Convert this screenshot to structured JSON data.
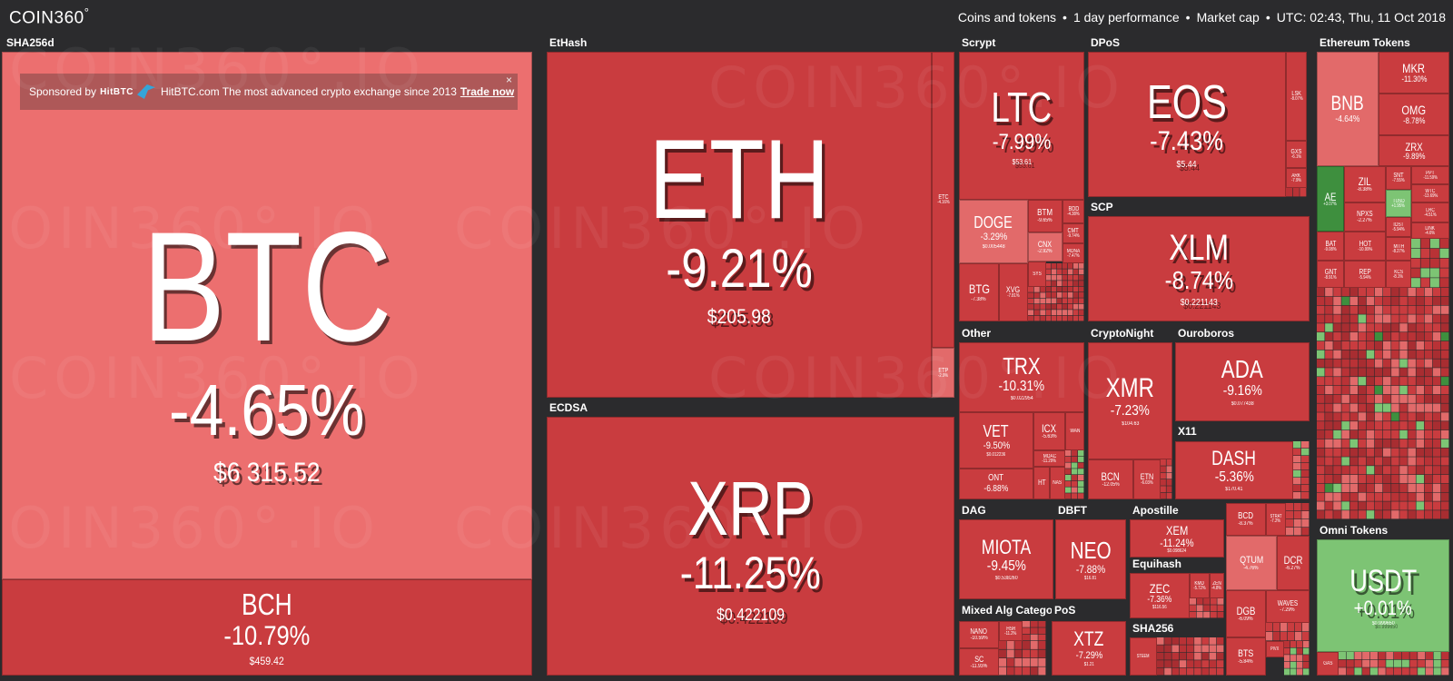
{
  "header": {
    "logo": "COIN360",
    "logo_mark": "°",
    "filters": [
      "Coins and tokens",
      "1 day performance",
      "Market cap",
      "UTC: 02:43, Thu, 11 Oct 2018"
    ],
    "separator": "•"
  },
  "sponsor": {
    "prefix": "Sponsored by",
    "brand": "HitBTC",
    "text": "HitBTC.com The most advanced crypto exchange since 2013",
    "link": "Trade now",
    "close": "×"
  },
  "watermark": "COIN360°.IO",
  "colors": {
    "background": "#2b2b2d",
    "tile_btc": "#ec6f6f",
    "tile_red": "#c93c3f",
    "tile_red_dark": "#b93236",
    "tile_light_red": "#e26a6a",
    "tile_green": "#7dc474",
    "tile_green_dark": "#3e8f3e"
  },
  "groups": [
    {
      "id": "sha256d",
      "label": "SHA256d"
    },
    {
      "id": "ethash",
      "label": "EtHash"
    },
    {
      "id": "ecdsa",
      "label": "ECDSA"
    },
    {
      "id": "scrypt",
      "label": "Scrypt"
    },
    {
      "id": "dpos",
      "label": "DPoS"
    },
    {
      "id": "scp",
      "label": "SCP"
    },
    {
      "id": "ethereum_tokens",
      "label": "Ethereum Tokens"
    },
    {
      "id": "other",
      "label": "Other"
    },
    {
      "id": "cryptonight",
      "label": "CryptoNight"
    },
    {
      "id": "ouroboros",
      "label": "Ouroboros"
    },
    {
      "id": "x11",
      "label": "X11"
    },
    {
      "id": "dag",
      "label": "DAG"
    },
    {
      "id": "dbft",
      "label": "DBFT"
    },
    {
      "id": "apostille",
      "label": "Apostille"
    },
    {
      "id": "equihash",
      "label": "Equihash"
    },
    {
      "id": "mixed",
      "label": "Mixed Alg Categor"
    },
    {
      "id": "pos",
      "label": "PoS"
    },
    {
      "id": "sha256",
      "label": "SHA256"
    },
    {
      "id": "omni",
      "label": "Omni Tokens"
    }
  ],
  "coins": [
    {
      "id": "btc",
      "symbol": "BTC",
      "change": "-4.65%",
      "price": "$6 315.52"
    },
    {
      "id": "bch",
      "symbol": "BCH",
      "change": "-10.79%",
      "price": "$459.42"
    },
    {
      "id": "eth",
      "symbol": "ETH",
      "change": "-9.21%",
      "price": "$205.98"
    },
    {
      "id": "etc",
      "symbol": "ETC",
      "change": "-4.16%",
      "price": ""
    },
    {
      "id": "etp",
      "symbol": "ETP",
      "change": "-2.9%",
      "price": ""
    },
    {
      "id": "xrp",
      "symbol": "XRP",
      "change": "-11.25%",
      "price": "$0.422109"
    },
    {
      "id": "ltc",
      "symbol": "LTC",
      "change": "-7.99%",
      "price": "$53.61"
    },
    {
      "id": "doge",
      "symbol": "DOGE",
      "change": "-3.29%",
      "price": "$0.005448"
    },
    {
      "id": "btm",
      "symbol": "BTM",
      "change": "-9.65%",
      "price": ""
    },
    {
      "id": "bdd",
      "symbol": "BDD",
      "change": "-4.38%",
      "price": ""
    },
    {
      "id": "cnx",
      "symbol": "CNX",
      "change": "-2.92%",
      "price": ""
    },
    {
      "id": "cmt",
      "symbol": "CMT",
      "change": "-9.74%",
      "price": ""
    },
    {
      "id": "mona",
      "symbol": "MONA",
      "change": "-7.47%",
      "price": ""
    },
    {
      "id": "btg",
      "symbol": "BTG",
      "change": "-7.38%",
      "price": ""
    },
    {
      "id": "xvg",
      "symbol": "XVG",
      "change": "-7.81%",
      "price": ""
    },
    {
      "id": "sys",
      "symbol": "SYS",
      "change": "",
      "price": ""
    },
    {
      "id": "eos",
      "symbol": "EOS",
      "change": "-7.43%",
      "price": "$5.44"
    },
    {
      "id": "lsk",
      "symbol": "LSK",
      "change": "-8.07%",
      "price": ""
    },
    {
      "id": "gxs",
      "symbol": "GXS",
      "change": "-6.1%",
      "price": ""
    },
    {
      "id": "ark",
      "symbol": "ARK",
      "change": "-7.9%",
      "price": ""
    },
    {
      "id": "xlm",
      "symbol": "XLM",
      "change": "-8.74%",
      "price": "$0.221143"
    },
    {
      "id": "trx",
      "symbol": "TRX",
      "change": "-10.31%",
      "price": "$0.022954"
    },
    {
      "id": "vet",
      "symbol": "VET",
      "change": "-9.50%",
      "price": "$0.012236"
    },
    {
      "id": "icx",
      "symbol": "ICX",
      "change": "-5.63%",
      "price": ""
    },
    {
      "id": "wan",
      "symbol": "WAN",
      "change": "",
      "price": ""
    },
    {
      "id": "ont",
      "symbol": "ONT",
      "change": "-6.88%",
      "price": ""
    },
    {
      "id": "moac",
      "symbol": "MOAC",
      "change": "-11.29%",
      "price": ""
    },
    {
      "id": "ht",
      "symbol": "HT",
      "change": "",
      "price": ""
    },
    {
      "id": "nas",
      "symbol": "NAS",
      "change": "",
      "price": ""
    },
    {
      "id": "xmr",
      "symbol": "XMR",
      "change": "-7.23%",
      "price": "$104.63"
    },
    {
      "id": "bcn",
      "symbol": "BCN",
      "change": "-12.05%",
      "price": ""
    },
    {
      "id": "etn",
      "symbol": "ETN",
      "change": "-6.03%",
      "price": ""
    },
    {
      "id": "ada",
      "symbol": "ADA",
      "change": "-9.16%",
      "price": "$0.077438"
    },
    {
      "id": "dash",
      "symbol": "DASH",
      "change": "-5.36%",
      "price": "$170.41"
    },
    {
      "id": "miota",
      "symbol": "MIOTA",
      "change": "-9.45%",
      "price": "$0.538260"
    },
    {
      "id": "neo",
      "symbol": "NEO",
      "change": "-7.88%",
      "price": "$16.81"
    },
    {
      "id": "xem",
      "symbol": "XEM",
      "change": "-11.24%",
      "price": "$0.098624"
    },
    {
      "id": "zec",
      "symbol": "ZEC",
      "change": "-7.36%",
      "price": "$116.56"
    },
    {
      "id": "kmd",
      "symbol": "KMD",
      "change": "-5.72%",
      "price": ""
    },
    {
      "id": "zen",
      "symbol": "ZEN",
      "change": "-4.8%",
      "price": ""
    },
    {
      "id": "nano",
      "symbol": "NANO",
      "change": "-10.59%",
      "price": ""
    },
    {
      "id": "hsr",
      "symbol": "HSR",
      "change": "-11.2%",
      "price": ""
    },
    {
      "id": "sc",
      "symbol": "SC",
      "change": "-11.93%",
      "price": ""
    },
    {
      "id": "xtz",
      "symbol": "XTZ",
      "change": "-7.29%",
      "price": "$1.21"
    },
    {
      "id": "steem",
      "symbol": "STEEM",
      "change": "",
      "price": ""
    },
    {
      "id": "bcd",
      "symbol": "BCD",
      "change": "-8.37%",
      "price": ""
    },
    {
      "id": "strat",
      "symbol": "STRAT",
      "change": "-7.2%",
      "price": ""
    },
    {
      "id": "qtum",
      "symbol": "QTUM",
      "change": "-4.76%",
      "price": ""
    },
    {
      "id": "dcr",
      "symbol": "DCR",
      "change": "-6.27%",
      "price": ""
    },
    {
      "id": "dgb",
      "symbol": "DGB",
      "change": "-6.09%",
      "price": ""
    },
    {
      "id": "waves",
      "symbol": "WAVES",
      "change": "-7.29%",
      "price": ""
    },
    {
      "id": "bts",
      "symbol": "BTS",
      "change": "-5.84%",
      "price": ""
    },
    {
      "id": "pivx",
      "symbol": "PIVX",
      "change": "",
      "price": ""
    },
    {
      "id": "bnb",
      "symbol": "BNB",
      "change": "-4.64%",
      "price": ""
    },
    {
      "id": "mkr",
      "symbol": "MKR",
      "change": "-11.30%",
      "price": ""
    },
    {
      "id": "omg",
      "symbol": "OMG",
      "change": "-8.78%",
      "price": ""
    },
    {
      "id": "zrx",
      "symbol": "ZRX",
      "change": "-9.89%",
      "price": ""
    },
    {
      "id": "ae",
      "symbol": "AE",
      "change": "+3.07%",
      "price": ""
    },
    {
      "id": "zil",
      "symbol": "ZIL",
      "change": "-8.38%",
      "price": ""
    },
    {
      "id": "snt",
      "symbol": "SNT",
      "change": "-7.55%",
      "price": ""
    },
    {
      "id": "ppt",
      "symbol": "PPT",
      "change": "-11.59%",
      "price": ""
    },
    {
      "id": "wtc",
      "symbol": "WTC",
      "change": "-13.69%",
      "price": ""
    },
    {
      "id": "tusd",
      "symbol": "TUSD",
      "change": "+1.95%",
      "price": ""
    },
    {
      "id": "lrc",
      "symbol": "LRC",
      "change": "-4.51%",
      "price": ""
    },
    {
      "id": "npxs",
      "symbol": "NPXS",
      "change": "-2.27%",
      "price": ""
    },
    {
      "id": "iost",
      "symbol": "IOST",
      "change": "-5.94%",
      "price": ""
    },
    {
      "id": "link",
      "symbol": "LINK",
      "change": "-4.6%",
      "price": ""
    },
    {
      "id": "bat",
      "symbol": "BAT",
      "change": "-9.08%",
      "price": ""
    },
    {
      "id": "hot",
      "symbol": "HOT",
      "change": "-10.99%",
      "price": ""
    },
    {
      "id": "mith",
      "symbol": "MITH",
      "change": "-8.27%",
      "price": ""
    },
    {
      "id": "gnt",
      "symbol": "GNT",
      "change": "-8.91%",
      "price": ""
    },
    {
      "id": "rep",
      "symbol": "REP",
      "change": "-5.94%",
      "price": ""
    },
    {
      "id": "kcs",
      "symbol": "KCS",
      "change": "-8.1%",
      "price": ""
    },
    {
      "id": "usdt",
      "symbol": "USDT",
      "change": "+0.01%",
      "price": "$0.999650"
    },
    {
      "id": "gas",
      "symbol": "GAS",
      "change": "",
      "price": ""
    }
  ]
}
